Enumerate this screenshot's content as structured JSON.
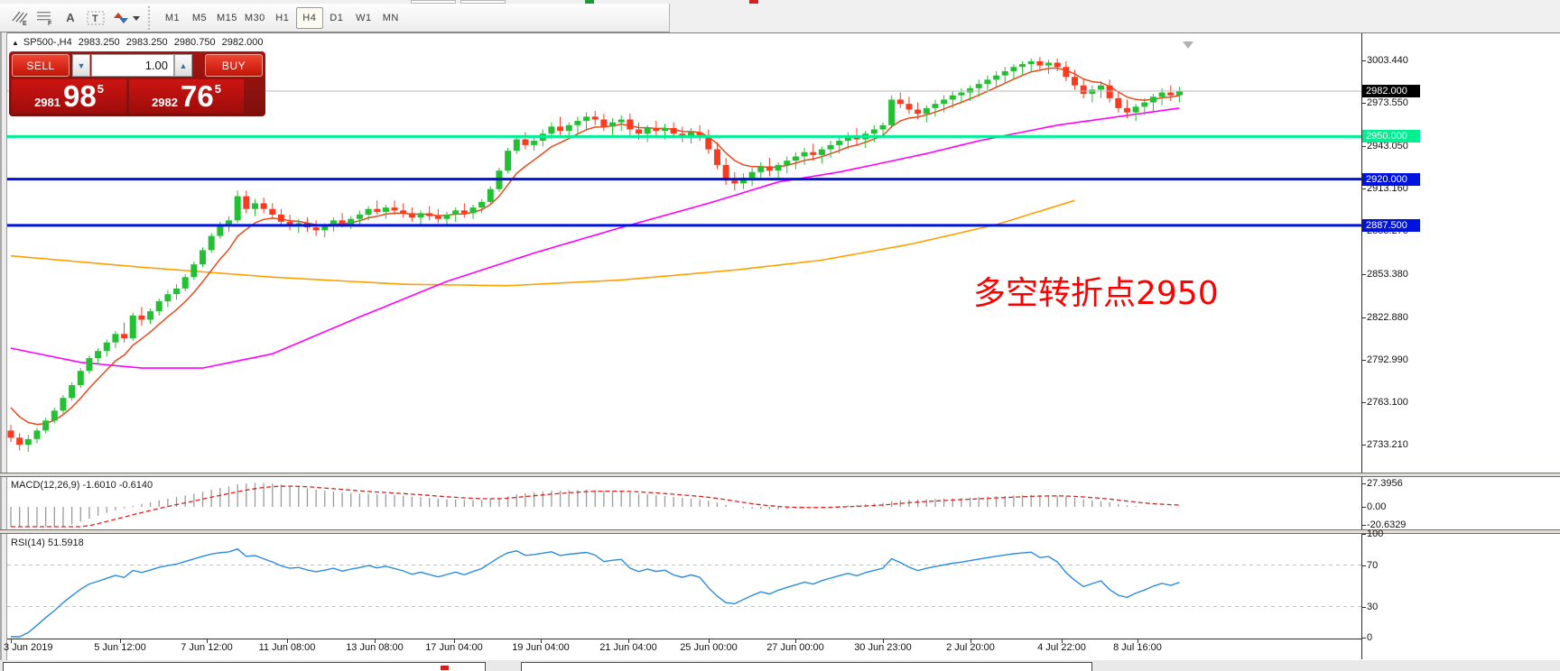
{
  "toolbar": {
    "tools": [
      {
        "name": "pattern-tool",
        "glyph": "#E"
      },
      {
        "name": "grid-tool",
        "glyph": "#F"
      },
      {
        "name": "text-tool",
        "glyph": "A"
      },
      {
        "name": "label-tool",
        "glyph": "T"
      },
      {
        "name": "arrows-tool",
        "glyph": "⇅ ▾"
      }
    ],
    "timeframes": [
      "M1",
      "M5",
      "M15",
      "M30",
      "H1",
      "H4",
      "D1",
      "W1",
      "MN"
    ],
    "selected_timeframe": "H4"
  },
  "chart_header": {
    "collapse_icon": "▲",
    "symbol": "SP500-,H4",
    "open": "2983.250",
    "high": "2983.250",
    "low": "2980.750",
    "close": "2982.000"
  },
  "trade_panel": {
    "sell_label": "SELL",
    "buy_label": "BUY",
    "volume": "1.00",
    "sell_price_small": "2981",
    "sell_price_big": "98",
    "sell_price_sup": "5",
    "buy_price_small": "2982",
    "buy_price_big": "76",
    "buy_price_sup": "5"
  },
  "annotation": {
    "text": "多空转折点2950",
    "color": "#ff0000"
  },
  "price_axis": {
    "ticks": [
      {
        "label": "3003.440",
        "price": 3003.44
      },
      {
        "label": "2973.550",
        "price": 2973.55
      },
      {
        "label": "2943.050",
        "price": 2943.05
      },
      {
        "label": "2913.160",
        "price": 2913.16
      },
      {
        "label": "2883.270",
        "price": 2883.27
      },
      {
        "label": "2853.380",
        "price": 2853.38
      },
      {
        "label": "2822.880",
        "price": 2822.88
      },
      {
        "label": "2792.990",
        "price": 2792.99
      },
      {
        "label": "2763.100",
        "price": 2763.1
      },
      {
        "label": "2733.210",
        "price": 2733.21
      }
    ],
    "badges": [
      {
        "label": "2982.000",
        "price": 2982.0,
        "bg": "#000000",
        "kind": "current-price"
      },
      {
        "label": "2950.000",
        "price": 2950.0,
        "bg": "#00ef92",
        "kind": "hline"
      },
      {
        "label": "2920.000",
        "price": 2920.0,
        "bg": "#0012e0",
        "kind": "hline"
      },
      {
        "label": "2887.500",
        "price": 2887.5,
        "bg": "#0012e0",
        "kind": "hline"
      }
    ]
  },
  "hlines": [
    {
      "price": 2950.0,
      "color": "#00ef92",
      "width": 3
    },
    {
      "price": 2920.0,
      "color": "#0012e0",
      "width": 3
    },
    {
      "price": 2887.5,
      "color": "#0012e0",
      "width": 3
    },
    {
      "price": 2982.0,
      "color": "#b9b9b9",
      "width": 1
    }
  ],
  "macd_panel": {
    "label": "MACD(12,26,9) -1.6010 -0.6140",
    "params": [
      12,
      26,
      9
    ],
    "macd_value": "-1.6010",
    "signal_value": "-0.6140",
    "axis": [
      {
        "label": "27.3956",
        "v": 27.3956
      },
      {
        "label": "0.00",
        "v": 0
      },
      {
        "label": "-20.6329",
        "v": -20.6329
      }
    ],
    "hist_color": "#9a9a9a",
    "signal_color": "#e02020"
  },
  "rsi_panel": {
    "label": "RSI(14) 51.5918",
    "period": 14,
    "value": "51.5918",
    "axis": [
      {
        "label": "100",
        "v": 100
      },
      {
        "label": "70",
        "v": 70
      },
      {
        "label": "30",
        "v": 30
      },
      {
        "label": "0",
        "v": 0
      }
    ],
    "levels": [
      70,
      30
    ],
    "line_color": "#2a8ce0"
  },
  "time_axis": {
    "labels": [
      {
        "text": "3 Jun 2019",
        "bar": 0,
        "align": "left"
      },
      {
        "text": "5 Jun 12:00",
        "bar": 12.5
      },
      {
        "text": "7 Jun 12:00",
        "bar": 22.5
      },
      {
        "text": "11 Jun 08:00",
        "bar": 31.7
      },
      {
        "text": "13 Jun 08:00",
        "bar": 41.7
      },
      {
        "text": "17 Jun 04:00",
        "bar": 50.8
      },
      {
        "text": "19 Jun 04:00",
        "bar": 60.8
      },
      {
        "text": "21 Jun 04:00",
        "bar": 70.8
      },
      {
        "text": "25 Jun 00:00",
        "bar": 80
      },
      {
        "text": "27 Jun 00:00",
        "bar": 90
      },
      {
        "text": "30 Jun 23:00",
        "bar": 100
      },
      {
        "text": "2 Jul 20:00",
        "bar": 110
      },
      {
        "text": "4 Jul 22:00",
        "bar": 120.5
      },
      {
        "text": "8 Jul 16:00",
        "bar": 129.2
      }
    ]
  },
  "chart_data": {
    "type": "candlestick",
    "symbol": "SP500-",
    "timeframe": "H4",
    "up_color": "#22c032",
    "down_color": "#fb3a20",
    "y_range": [
      2714,
      3022
    ],
    "candles": [
      [
        2743,
        2747,
        2735,
        2738
      ],
      [
        2738,
        2741,
        2729,
        2733
      ],
      [
        2733,
        2740,
        2728,
        2737
      ],
      [
        2737,
        2745,
        2734,
        2743
      ],
      [
        2743,
        2752,
        2741,
        2750
      ],
      [
        2750,
        2759,
        2748,
        2757
      ],
      [
        2757,
        2768,
        2755,
        2766
      ],
      [
        2766,
        2777,
        2764,
        2775
      ],
      [
        2775,
        2787,
        2773,
        2785
      ],
      [
        2785,
        2796,
        2783,
        2794
      ],
      [
        2794,
        2801,
        2790,
        2799
      ],
      [
        2799,
        2807,
        2795,
        2805
      ],
      [
        2805,
        2813,
        2801,
        2811
      ],
      [
        2811,
        2819,
        2805,
        2808
      ],
      [
        2808,
        2826,
        2806,
        2824
      ],
      [
        2824,
        2830,
        2817,
        2821
      ],
      [
        2821,
        2829,
        2818,
        2827
      ],
      [
        2827,
        2836,
        2824,
        2834
      ],
      [
        2834,
        2842,
        2830,
        2839
      ],
      [
        2839,
        2846,
        2835,
        2843
      ],
      [
        2843,
        2853,
        2841,
        2851
      ],
      [
        2851,
        2862,
        2849,
        2860
      ],
      [
        2860,
        2872,
        2858,
        2870
      ],
      [
        2870,
        2882,
        2868,
        2880
      ],
      [
        2880,
        2890,
        2878,
        2887
      ],
      [
        2887,
        2894,
        2883,
        2891
      ],
      [
        2891,
        2912,
        2889,
        2908
      ],
      [
        2908,
        2912,
        2896,
        2899
      ],
      [
        2899,
        2906,
        2894,
        2903
      ],
      [
        2903,
        2907,
        2896,
        2899
      ],
      [
        2899,
        2903,
        2892,
        2895
      ],
      [
        2895,
        2899,
        2887,
        2890
      ],
      [
        2890,
        2895,
        2884,
        2887
      ],
      [
        2887,
        2892,
        2882,
        2889
      ],
      [
        2889,
        2893,
        2883,
        2886
      ],
      [
        2886,
        2891,
        2880,
        2884
      ],
      [
        2884,
        2889,
        2879,
        2887
      ],
      [
        2887,
        2893,
        2883,
        2891
      ],
      [
        2891,
        2896,
        2886,
        2888
      ],
      [
        2888,
        2894,
        2885,
        2892
      ],
      [
        2892,
        2898,
        2888,
        2895
      ],
      [
        2895,
        2901,
        2891,
        2899
      ],
      [
        2899,
        2905,
        2895,
        2897
      ],
      [
        2897,
        2902,
        2892,
        2900
      ],
      [
        2900,
        2905,
        2895,
        2898
      ],
      [
        2898,
        2903,
        2893,
        2896
      ],
      [
        2896,
        2900,
        2890,
        2893
      ],
      [
        2893,
        2898,
        2888,
        2896
      ],
      [
        2896,
        2901,
        2891,
        2894
      ],
      [
        2894,
        2899,
        2889,
        2892
      ],
      [
        2892,
        2897,
        2887,
        2895
      ],
      [
        2895,
        2900,
        2890,
        2898
      ],
      [
        2898,
        2903,
        2893,
        2896
      ],
      [
        2896,
        2902,
        2892,
        2900
      ],
      [
        2900,
        2906,
        2896,
        2904
      ],
      [
        2904,
        2915,
        2902,
        2913
      ],
      [
        2913,
        2928,
        2911,
        2926
      ],
      [
        2926,
        2942,
        2924,
        2940
      ],
      [
        2940,
        2951,
        2938,
        2948
      ],
      [
        2948,
        2953,
        2941,
        2944
      ],
      [
        2944,
        2950,
        2940,
        2947
      ],
      [
        2947,
        2955,
        2943,
        2952
      ],
      [
        2952,
        2960,
        2948,
        2957
      ],
      [
        2957,
        2964,
        2951,
        2954
      ],
      [
        2954,
        2960,
        2948,
        2958
      ],
      [
        2958,
        2964,
        2952,
        2961
      ],
      [
        2961,
        2967,
        2955,
        2964
      ],
      [
        2964,
        2968,
        2958,
        2962
      ],
      [
        2962,
        2966,
        2954,
        2957
      ],
      [
        2957,
        2963,
        2951,
        2960
      ],
      [
        2960,
        2965,
        2954,
        2962
      ],
      [
        2962,
        2966,
        2951,
        2955
      ],
      [
        2955,
        2960,
        2948,
        2952
      ],
      [
        2952,
        2958,
        2946,
        2956
      ],
      [
        2956,
        2961,
        2950,
        2954
      ],
      [
        2954,
        2959,
        2948,
        2956
      ],
      [
        2956,
        2960,
        2949,
        2952
      ],
      [
        2952,
        2957,
        2946,
        2950
      ],
      [
        2950,
        2956,
        2945,
        2953
      ],
      [
        2953,
        2958,
        2947,
        2951
      ],
      [
        2951,
        2955,
        2938,
        2941
      ],
      [
        2941,
        2946,
        2927,
        2930
      ],
      [
        2930,
        2935,
        2916,
        2919
      ],
      [
        2919,
        2925,
        2912,
        2917
      ],
      [
        2917,
        2924,
        2913,
        2921
      ],
      [
        2921,
        2928,
        2915,
        2925
      ],
      [
        2925,
        2932,
        2919,
        2929
      ],
      [
        2929,
        2935,
        2922,
        2926
      ],
      [
        2926,
        2932,
        2920,
        2930
      ],
      [
        2930,
        2936,
        2924,
        2933
      ],
      [
        2933,
        2939,
        2927,
        2936
      ],
      [
        2936,
        2942,
        2930,
        2939
      ],
      [
        2939,
        2945,
        2933,
        2937
      ],
      [
        2937,
        2943,
        2931,
        2941
      ],
      [
        2941,
        2947,
        2935,
        2944
      ],
      [
        2944,
        2950,
        2938,
        2947
      ],
      [
        2947,
        2953,
        2941,
        2950
      ],
      [
        2950,
        2956,
        2944,
        2948
      ],
      [
        2948,
        2954,
        2942,
        2952
      ],
      [
        2952,
        2958,
        2946,
        2955
      ],
      [
        2955,
        2960,
        2950,
        2958
      ],
      [
        2958,
        2979,
        2956,
        2976
      ],
      [
        2976,
        2981,
        2970,
        2973
      ],
      [
        2973,
        2978,
        2966,
        2969
      ],
      [
        2969,
        2974,
        2962,
        2966
      ],
      [
        2966,
        2972,
        2960,
        2970
      ],
      [
        2970,
        2976,
        2964,
        2973
      ],
      [
        2973,
        2979,
        2967,
        2976
      ],
      [
        2976,
        2982,
        2970,
        2979
      ],
      [
        2979,
        2984,
        2973,
        2981
      ],
      [
        2981,
        2986,
        2975,
        2984
      ],
      [
        2984,
        2990,
        2978,
        2987
      ],
      [
        2987,
        2993,
        2981,
        2990
      ],
      [
        2990,
        2996,
        2984,
        2993
      ],
      [
        2993,
        2999,
        2987,
        2996
      ],
      [
        2996,
        3001,
        2990,
        2999
      ],
      [
        2999,
        3003,
        2993,
        3001
      ],
      [
        3001,
        3005,
        2995,
        3003
      ],
      [
        3003,
        3006,
        2997,
        3000
      ],
      [
        3000,
        3004,
        2994,
        3002
      ],
      [
        3002,
        3005,
        2996,
        2999
      ],
      [
        2999,
        3003,
        2989,
        2992
      ],
      [
        2992,
        2997,
        2983,
        2986
      ],
      [
        2986,
        2991,
        2977,
        2980
      ],
      [
        2980,
        2986,
        2974,
        2983
      ],
      [
        2983,
        2989,
        2977,
        2986
      ],
      [
        2986,
        2990,
        2974,
        2977
      ],
      [
        2977,
        2982,
        2967,
        2970
      ],
      [
        2970,
        2976,
        2963,
        2967
      ],
      [
        2967,
        2973,
        2961,
        2971
      ],
      [
        2971,
        2977,
        2965,
        2974
      ],
      [
        2974,
        2980,
        2968,
        2978
      ],
      [
        2978,
        2984,
        2972,
        2981
      ],
      [
        2981,
        2986,
        2975,
        2979
      ],
      [
        2979,
        2985,
        2974,
        2982
      ]
    ],
    "indicator_warmup_closes": [
      2880,
      2875,
      2870,
      2864,
      2858,
      2852,
      2846,
      2840,
      2834,
      2828,
      2822,
      2816,
      2810,
      2804,
      2798,
      2792,
      2786,
      2780,
      2775,
      2770,
      2765,
      2760,
      2756,
      2752
    ],
    "moving_averages": {
      "fast": {
        "color": "#e8491c",
        "type": "ema",
        "period": 7
      },
      "mid": {
        "color": "#ff00ff",
        "points": [
          [
            0,
            2801
          ],
          [
            8,
            2791
          ],
          [
            15,
            2787
          ],
          [
            22,
            2787
          ],
          [
            30,
            2797
          ],
          [
            40,
            2823
          ],
          [
            50,
            2848
          ],
          [
            60,
            2868
          ],
          [
            70,
            2886
          ],
          [
            80,
            2903
          ],
          [
            88,
            2918
          ],
          [
            95,
            2925
          ],
          [
            105,
            2938
          ],
          [
            111,
            2947
          ],
          [
            120,
            2958
          ],
          [
            127,
            2964
          ],
          [
            134,
            2970
          ]
        ]
      },
      "slow": {
        "color": "#ffa000",
        "points": [
          [
            0,
            2866
          ],
          [
            15,
            2858
          ],
          [
            30,
            2851
          ],
          [
            45,
            2846
          ],
          [
            57,
            2845
          ],
          [
            70,
            2849
          ],
          [
            83,
            2856
          ],
          [
            93,
            2863
          ],
          [
            103,
            2874
          ],
          [
            113,
            2888
          ],
          [
            122,
            2905
          ]
        ]
      }
    }
  }
}
